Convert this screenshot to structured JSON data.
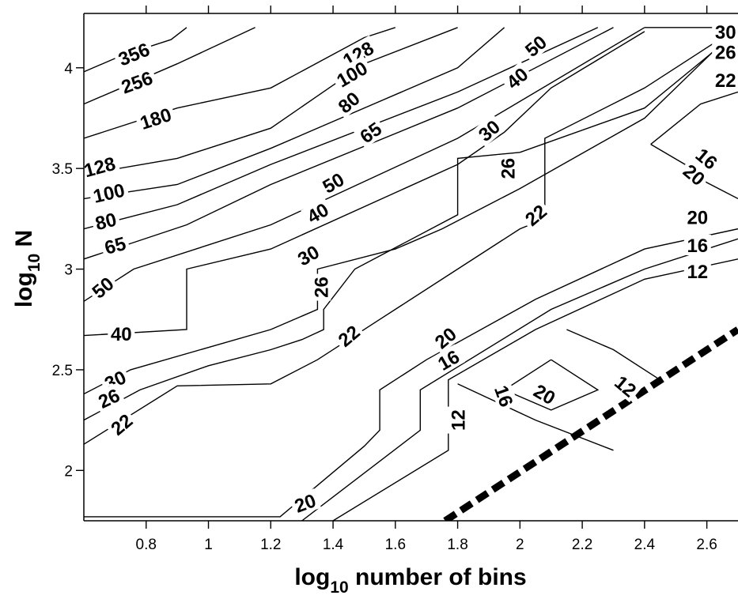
{
  "chart_data": {
    "type": "contour",
    "title": "",
    "xlabel": {
      "prefix": "log",
      "sub": "10",
      "suffix": " number of bins"
    },
    "ylabel": {
      "prefix": "log",
      "sub": "10",
      "suffix": " N"
    },
    "xlim": [
      0.6,
      2.7
    ],
    "ylim": [
      1.75,
      4.27
    ],
    "xticks": [
      0.8,
      1,
      1.2,
      1.4,
      1.6,
      1.8,
      2,
      2.2,
      2.4,
      2.6
    ],
    "yticks": [
      2,
      2.5,
      3,
      3.5,
      4
    ],
    "contours": [
      {
        "level": "356",
        "points": [
          [
            0.6,
            3.98
          ],
          [
            0.72,
            4.06
          ],
          [
            0.88,
            4.14
          ],
          [
            0.93,
            4.2
          ]
        ]
      },
      {
        "level": "256",
        "points": [
          [
            0.6,
            3.82
          ],
          [
            0.72,
            3.9
          ],
          [
            0.9,
            4.02
          ],
          [
            1.15,
            4.2
          ]
        ]
      },
      {
        "level": "180",
        "points": [
          [
            0.6,
            3.65
          ],
          [
            0.9,
            3.8
          ],
          [
            1.2,
            3.9
          ],
          [
            1.5,
            4.15
          ],
          [
            1.6,
            4.2
          ]
        ]
      },
      {
        "level": "128",
        "points": [
          [
            0.6,
            3.47
          ],
          [
            0.9,
            3.55
          ],
          [
            1.2,
            3.7
          ],
          [
            1.5,
            4.02
          ],
          [
            1.8,
            4.2
          ]
        ]
      },
      {
        "level": "100",
        "points": [
          [
            0.6,
            3.35
          ],
          [
            0.9,
            3.42
          ],
          [
            1.2,
            3.6
          ],
          [
            1.8,
            4.0
          ],
          [
            1.95,
            4.2
          ]
        ]
      },
      {
        "level": "80",
        "points": [
          [
            0.6,
            3.2
          ],
          [
            0.9,
            3.32
          ],
          [
            1.2,
            3.52
          ],
          [
            1.8,
            3.88
          ],
          [
            2.25,
            4.2
          ]
        ]
      },
      {
        "level": "65",
        "points": [
          [
            0.6,
            3.05
          ],
          [
            0.93,
            3.22
          ],
          [
            1.2,
            3.42
          ],
          [
            1.8,
            3.8
          ],
          [
            2.3,
            4.2
          ]
        ]
      },
      {
        "level": "50",
        "points": [
          [
            0.6,
            2.84
          ],
          [
            0.76,
            3.0
          ],
          [
            1.2,
            3.22
          ],
          [
            1.8,
            3.65
          ],
          [
            2.4,
            4.2
          ]
        ]
      },
      {
        "level": "40",
        "points": [
          [
            0.6,
            2.67
          ],
          [
            0.93,
            2.7
          ],
          [
            0.93,
            3.0
          ],
          [
            1.2,
            3.1
          ],
          [
            1.8,
            3.52
          ],
          [
            1.95,
            3.68
          ],
          [
            2.1,
            3.9
          ],
          [
            2.4,
            4.18
          ]
        ]
      },
      {
        "level": "30",
        "points": [
          [
            0.6,
            2.38
          ],
          [
            0.75,
            2.5
          ],
          [
            1.2,
            2.7
          ],
          [
            1.35,
            2.8
          ],
          [
            1.35,
            3.0
          ],
          [
            1.6,
            3.1
          ],
          [
            1.75,
            3.2
          ],
          [
            2.0,
            3.4
          ],
          [
            2.4,
            3.75
          ],
          [
            2.7,
            4.2
          ]
        ]
      },
      {
        "level": "26",
        "points": [
          [
            0.6,
            2.25
          ],
          [
            0.78,
            2.4
          ],
          [
            1.0,
            2.52
          ],
          [
            1.2,
            2.6
          ],
          [
            1.3,
            2.65
          ],
          [
            1.37,
            2.7
          ],
          [
            1.37,
            2.8
          ],
          [
            1.47,
            3.0
          ],
          [
            1.8,
            3.27
          ],
          [
            1.8,
            3.55
          ],
          [
            2.0,
            3.58
          ],
          [
            2.4,
            3.8
          ],
          [
            2.7,
            4.18
          ]
        ]
      },
      {
        "level": "22",
        "points": [
          [
            0.6,
            2.13
          ],
          [
            0.9,
            2.42
          ],
          [
            1.2,
            2.43
          ],
          [
            1.35,
            2.55
          ],
          [
            1.55,
            2.75
          ],
          [
            1.8,
            3.0
          ],
          [
            2.0,
            3.2
          ],
          [
            2.08,
            3.25
          ],
          [
            2.08,
            3.65
          ],
          [
            2.4,
            3.9
          ],
          [
            2.7,
            4.2
          ]
        ]
      },
      {
        "level": "20",
        "points": [
          [
            0.6,
            1.77
          ],
          [
            1.23,
            1.77
          ],
          [
            1.5,
            2.12
          ],
          [
            1.55,
            2.2
          ],
          [
            1.55,
            2.4
          ],
          [
            1.7,
            2.55
          ],
          [
            2.05,
            2.85
          ],
          [
            2.4,
            3.1
          ],
          [
            2.7,
            3.2
          ]
        ]
      },
      {
        "level": "16",
        "points": [
          [
            1.3,
            1.75
          ],
          [
            1.68,
            2.2
          ],
          [
            1.68,
            2.4
          ],
          [
            2.1,
            2.8
          ],
          [
            2.4,
            3.0
          ],
          [
            2.7,
            3.15
          ]
        ]
      },
      {
        "level": "12",
        "points": [
          [
            1.4,
            1.75
          ],
          [
            1.77,
            2.1
          ],
          [
            1.77,
            2.45
          ],
          [
            2.05,
            2.7
          ],
          [
            2.4,
            2.95
          ],
          [
            2.7,
            3.05
          ]
        ]
      },
      {
        "level": "20",
        "points": [
          [
            2.4,
            4.2
          ],
          [
            2.7,
            4.2
          ]
        ]
      },
      {
        "level": "20",
        "points": [
          [
            2.1,
            2.55
          ],
          [
            2.25,
            2.4
          ],
          [
            2.1,
            2.3
          ],
          [
            1.95,
            2.4
          ],
          [
            2.1,
            2.55
          ]
        ]
      },
      {
        "level": "12",
        "points": [
          [
            2.15,
            2.7
          ],
          [
            2.3,
            2.6
          ],
          [
            2.45,
            2.45
          ]
        ]
      },
      {
        "level": "12",
        "points": [
          [
            1.8,
            2.43
          ],
          [
            2.05,
            2.25
          ],
          [
            2.3,
            2.1
          ]
        ]
      }
    ],
    "contour_labels": [
      {
        "text": "356",
        "x": 0.76,
        "y": 4.07,
        "angle": -22
      },
      {
        "text": "256",
        "x": 0.77,
        "y": 3.93,
        "angle": -20
      },
      {
        "text": "180",
        "x": 0.83,
        "y": 3.75,
        "angle": -18
      },
      {
        "text": "128",
        "x": 0.65,
        "y": 3.51,
        "angle": -15
      },
      {
        "text": "100",
        "x": 0.68,
        "y": 3.38,
        "angle": -13
      },
      {
        "text": "80",
        "x": 0.67,
        "y": 3.24,
        "angle": -14
      },
      {
        "text": "65",
        "x": 0.7,
        "y": 3.12,
        "angle": -15
      },
      {
        "text": "50",
        "x": 0.66,
        "y": 2.91,
        "angle": -40
      },
      {
        "text": "40",
        "x": 0.72,
        "y": 2.68,
        "angle": 0
      },
      {
        "text": "30",
        "x": 0.7,
        "y": 2.45,
        "angle": -25
      },
      {
        "text": "26",
        "x": 0.68,
        "y": 2.36,
        "angle": -25
      },
      {
        "text": "22",
        "x": 0.72,
        "y": 2.23,
        "angle": -40
      },
      {
        "text": "128",
        "x": 1.48,
        "y": 4.07,
        "angle": -30
      },
      {
        "text": "100",
        "x": 1.46,
        "y": 3.97,
        "angle": -30
      },
      {
        "text": "80",
        "x": 1.45,
        "y": 3.83,
        "angle": -40
      },
      {
        "text": "65",
        "x": 1.52,
        "y": 3.68,
        "angle": -35
      },
      {
        "text": "50",
        "x": 1.4,
        "y": 3.43,
        "angle": -30
      },
      {
        "text": "40",
        "x": 1.35,
        "y": 3.28,
        "angle": -30
      },
      {
        "text": "30",
        "x": 1.32,
        "y": 3.07,
        "angle": -30
      },
      {
        "text": "26",
        "x": 1.36,
        "y": 2.91,
        "angle": -90
      },
      {
        "text": "22",
        "x": 1.45,
        "y": 2.67,
        "angle": -40
      },
      {
        "text": "50",
        "x": 2.05,
        "y": 4.11,
        "angle": -40
      },
      {
        "text": "40",
        "x": 1.99,
        "y": 3.95,
        "angle": -40
      },
      {
        "text": "30",
        "x": 1.9,
        "y": 3.69,
        "angle": -40
      },
      {
        "text": "26",
        "x": 1.96,
        "y": 3.5,
        "angle": -90
      },
      {
        "text": "22",
        "x": 2.05,
        "y": 3.27,
        "angle": -40
      },
      {
        "text": "20",
        "x": 1.76,
        "y": 2.66,
        "angle": -40
      },
      {
        "text": "16",
        "x": 1.77,
        "y": 2.55,
        "angle": -30
      },
      {
        "text": "12",
        "x": 1.8,
        "y": 2.25,
        "angle": -90
      },
      {
        "text": "16",
        "x": 1.95,
        "y": 2.37,
        "angle": 70
      },
      {
        "text": "20",
        "x": 2.08,
        "y": 2.38,
        "angle": 30
      },
      {
        "text": "12",
        "x": 2.34,
        "y": 2.42,
        "angle": 40
      },
      {
        "text": "20",
        "x": 1.31,
        "y": 1.84,
        "angle": -20
      },
      {
        "text": "30",
        "x": 2.66,
        "y": 4.18,
        "angle": 0
      },
      {
        "text": "26",
        "x": 2.66,
        "y": 4.08,
        "angle": 0
      },
      {
        "text": "22",
        "x": 2.66,
        "y": 3.94,
        "angle": 0
      },
      {
        "text": "20",
        "x": 2.57,
        "y": 3.26,
        "angle": 0
      },
      {
        "text": "16",
        "x": 2.57,
        "y": 3.12,
        "angle": 0
      },
      {
        "text": "12",
        "x": 2.57,
        "y": 2.99,
        "angle": 0
      },
      {
        "text": "16",
        "x": 2.6,
        "y": 3.55,
        "angle": 40
      },
      {
        "text": "20",
        "x": 2.56,
        "y": 3.47,
        "angle": 40
      }
    ],
    "extra_lines": [
      {
        "points": [
          [
            2.42,
            3.62
          ],
          [
            2.53,
            3.52
          ],
          [
            2.6,
            3.43
          ],
          [
            2.7,
            3.35
          ]
        ]
      },
      {
        "points": [
          [
            2.42,
            3.62
          ],
          [
            2.5,
            3.72
          ],
          [
            2.58,
            3.82
          ],
          [
            2.7,
            3.88
          ]
        ]
      }
    ],
    "boundary": {
      "style": "dashed",
      "points": [
        [
          1.76,
          1.75
        ],
        [
          2.7,
          2.7
        ]
      ]
    }
  }
}
